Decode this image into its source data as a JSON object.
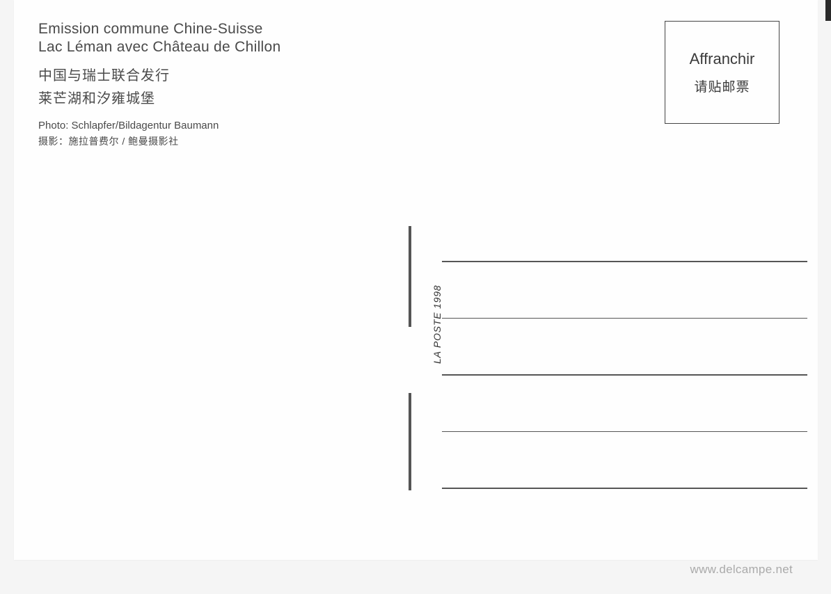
{
  "header": {
    "title_fr_line1": "Emission commune Chine-Suisse",
    "title_fr_line2": "Lac Léman avec Château de Chillon",
    "title_cn_line1": "中国与瑞士联合发行",
    "title_cn_line2": "莱芒湖和汐雍城堡",
    "photo_credit_fr": "Photo: Schlapfer/Bildagentur Baumann",
    "photo_credit_cn": "摄影：施拉普费尔 / 鲍曼摄影社"
  },
  "stamp_box": {
    "text_fr": "Affranchir",
    "text_cn": "请贴邮票"
  },
  "divider": {
    "vertical_text": "LA POSTE 1998"
  },
  "watermark": "www.delcampe.net",
  "colors": {
    "background": "#f5f5f5",
    "card_bg": "#fefefe",
    "text_primary": "#4a4a4a",
    "text_dark": "#333",
    "line_color": "#555",
    "watermark_color": "#aaa"
  },
  "address_lines_count": 5
}
